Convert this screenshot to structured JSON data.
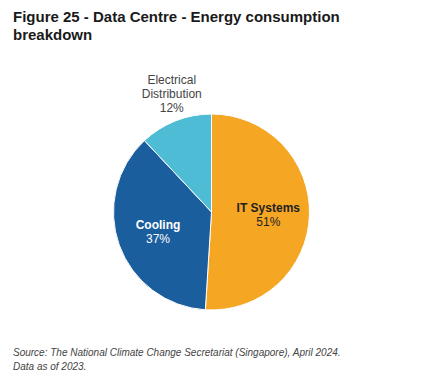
{
  "chart_data": {
    "type": "pie",
    "title": "Figure 25 - Data Centre - Energy consumption breakdown",
    "categories": [
      "IT Systems",
      "Cooling",
      "Electrical Distribution"
    ],
    "values": [
      51,
      37,
      12
    ],
    "value_labels": [
      "51%",
      "37%",
      "12%"
    ],
    "colors": [
      "#F5A623",
      "#1A5E9E",
      "#4DBCD4"
    ],
    "data_labels": true,
    "annotations": [
      "Source: The National Climate Change Secretariat (Singapore), April 2024.",
      "Data as of 2023."
    ]
  }
}
